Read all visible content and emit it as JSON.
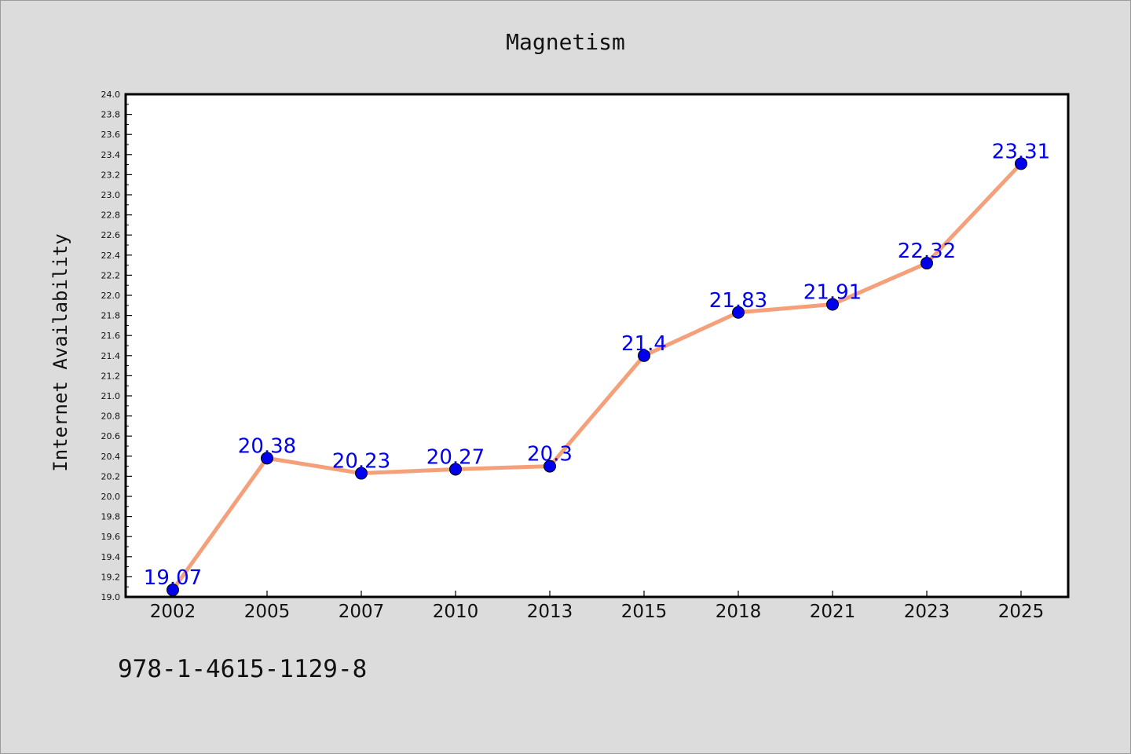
{
  "footer": {
    "identifier": "978-1-4615-1129-8"
  },
  "chart_data": {
    "type": "line",
    "title": "Magnetism",
    "xlabel": "",
    "ylabel": "Internet Availability",
    "categories": [
      "2002",
      "2005",
      "2007",
      "2010",
      "2013",
      "2015",
      "2018",
      "2021",
      "2023",
      "2025"
    ],
    "series": [
      {
        "values": [
          19.07,
          20.38,
          20.23,
          20.27,
          20.3,
          21.4,
          21.83,
          21.91,
          22.32,
          23.31
        ],
        "data_labels": [
          "19.07",
          "20.38",
          "20.23",
          "20.27",
          "20.3",
          "21.4",
          "21.83",
          "21.91",
          "22.32",
          "23.31"
        ]
      }
    ],
    "ylim": [
      19.0,
      24.0
    ],
    "yticks": [
      "19.0",
      "19.2",
      "19.4",
      "19.6",
      "19.8",
      "20.0",
      "20.2",
      "20.4",
      "20.6",
      "20.8",
      "21.0",
      "21.2",
      "21.4",
      "21.6",
      "21.8",
      "22.0",
      "22.2",
      "22.4",
      "22.6",
      "22.8",
      "23.0",
      "23.2",
      "23.4",
      "23.6",
      "23.8",
      "24.0"
    ],
    "grid": false,
    "legend": "none",
    "colors": {
      "line": "#f4a07a",
      "marker": "#0000ee",
      "label": "#0000ee",
      "plot_bg": "#ffffff"
    }
  }
}
